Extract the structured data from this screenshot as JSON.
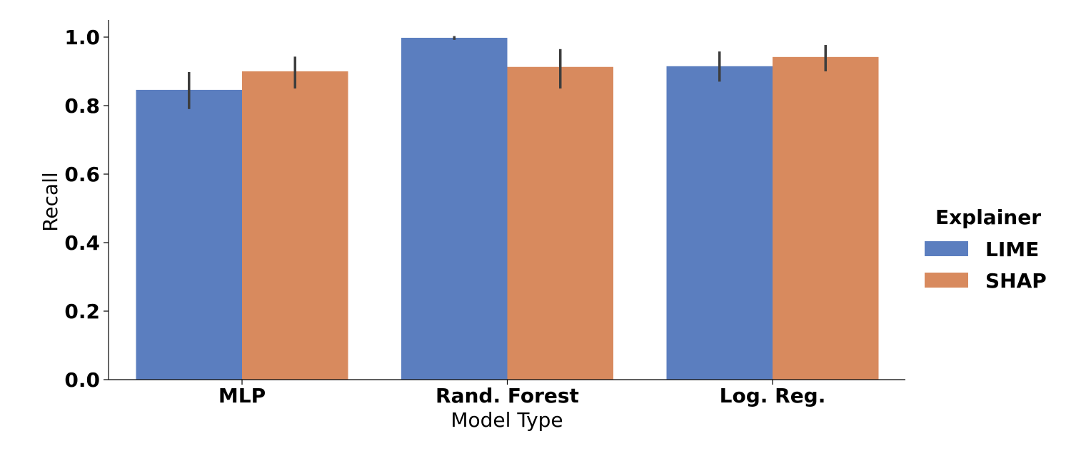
{
  "chart_data": {
    "type": "bar",
    "categories": [
      "MLP",
      "Rand. Forest",
      "Log. Reg."
    ],
    "series": [
      {
        "name": "LIME",
        "color": "#5b7ebf",
        "values": [
          0.846,
          0.998,
          0.915
        ],
        "err_low": [
          0.79,
          0.992,
          0.87
        ],
        "err_high": [
          0.898,
          1.003,
          0.958
        ]
      },
      {
        "name": "SHAP",
        "color": "#d88a5e",
        "values": [
          0.9,
          0.913,
          0.942
        ],
        "err_low": [
          0.85,
          0.85,
          0.9
        ],
        "err_high": [
          0.943,
          0.965,
          0.977
        ]
      }
    ],
    "xlabel": "Model Type",
    "ylabel": "Recall",
    "ylim": [
      0,
      1.05
    ],
    "yticks": [
      "0.0",
      "0.2",
      "0.4",
      "0.6",
      "0.8",
      "1.0"
    ],
    "legend": {
      "title": "Explainer",
      "placement": "right"
    },
    "grid": false
  }
}
